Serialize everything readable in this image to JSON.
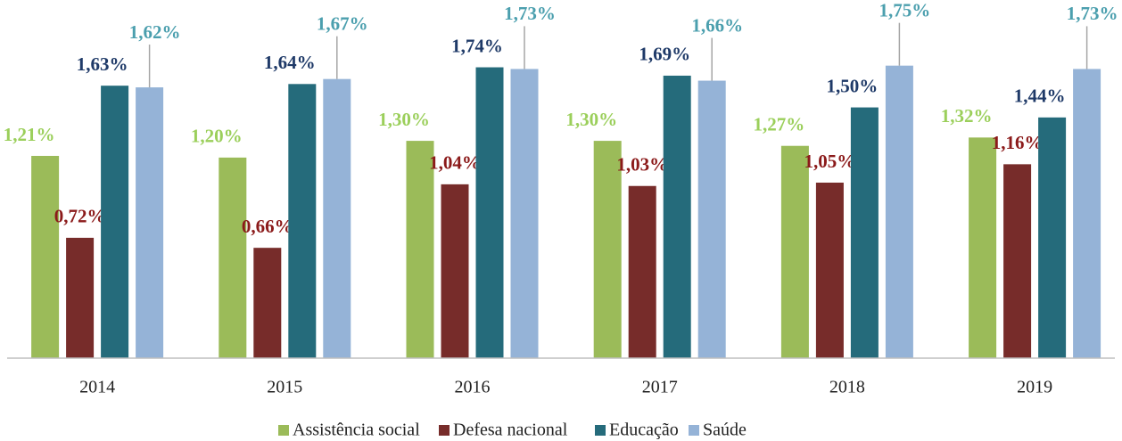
{
  "chart_data": {
    "type": "bar",
    "categories": [
      "2014",
      "2015",
      "2016",
      "2017",
      "2018",
      "2019"
    ],
    "ylim": [
      0,
      2.1
    ],
    "series": [
      {
        "name": "Assistência social",
        "color": "#9bbb59",
        "label_color": "#9bcf5b",
        "values": [
          1.21,
          1.2,
          1.3,
          1.3,
          1.27,
          1.32
        ],
        "value_labels": [
          "1,21%",
          "1,20%",
          "1,30%",
          "1,30%",
          "1,27%",
          "1,32%"
        ]
      },
      {
        "name": "Defesa nacional",
        "color": "#772c2a",
        "label_color": "#8b1a1a",
        "values": [
          0.72,
          0.66,
          1.04,
          1.03,
          1.05,
          1.16
        ],
        "value_labels": [
          "0,72%",
          "0,66%",
          "1,04%",
          "1,03%",
          "1,05%",
          "1,16%"
        ]
      },
      {
        "name": "Educação",
        "color": "#256b7b",
        "label_color": "#1f3a68",
        "values": [
          1.63,
          1.64,
          1.74,
          1.69,
          1.5,
          1.44
        ],
        "value_labels": [
          "1,63%",
          "1,64%",
          "1,74%",
          "1,69%",
          "1,50%",
          "1,44%"
        ]
      },
      {
        "name": "Saúde",
        "color": "#95b3d7",
        "label_color": "#4b9fae",
        "values": [
          1.62,
          1.67,
          1.73,
          1.66,
          1.75,
          1.73
        ],
        "value_labels": [
          "1,62%",
          "1,67%",
          "1,73%",
          "1,66%",
          "1,75%",
          "1,73%"
        ]
      }
    ]
  }
}
